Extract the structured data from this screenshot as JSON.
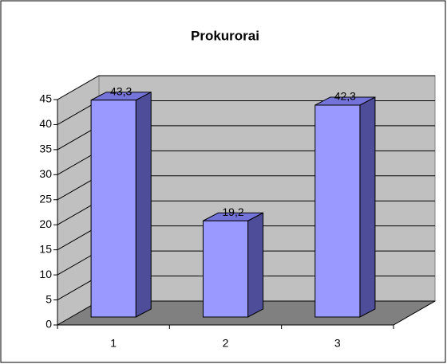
{
  "chart_data": {
    "type": "bar3d",
    "title": "Prokurorai",
    "categories": [
      "1",
      "2",
      "3"
    ],
    "values": [
      43.3,
      19.2,
      42.3
    ],
    "value_labels": [
      "43,3",
      "19,2",
      "42,3"
    ],
    "color": "#9999ff",
    "ylim": [
      0,
      45
    ],
    "yticks": [
      0,
      5,
      10,
      15,
      20,
      25,
      30,
      35,
      40,
      45
    ],
    "grid": true
  }
}
